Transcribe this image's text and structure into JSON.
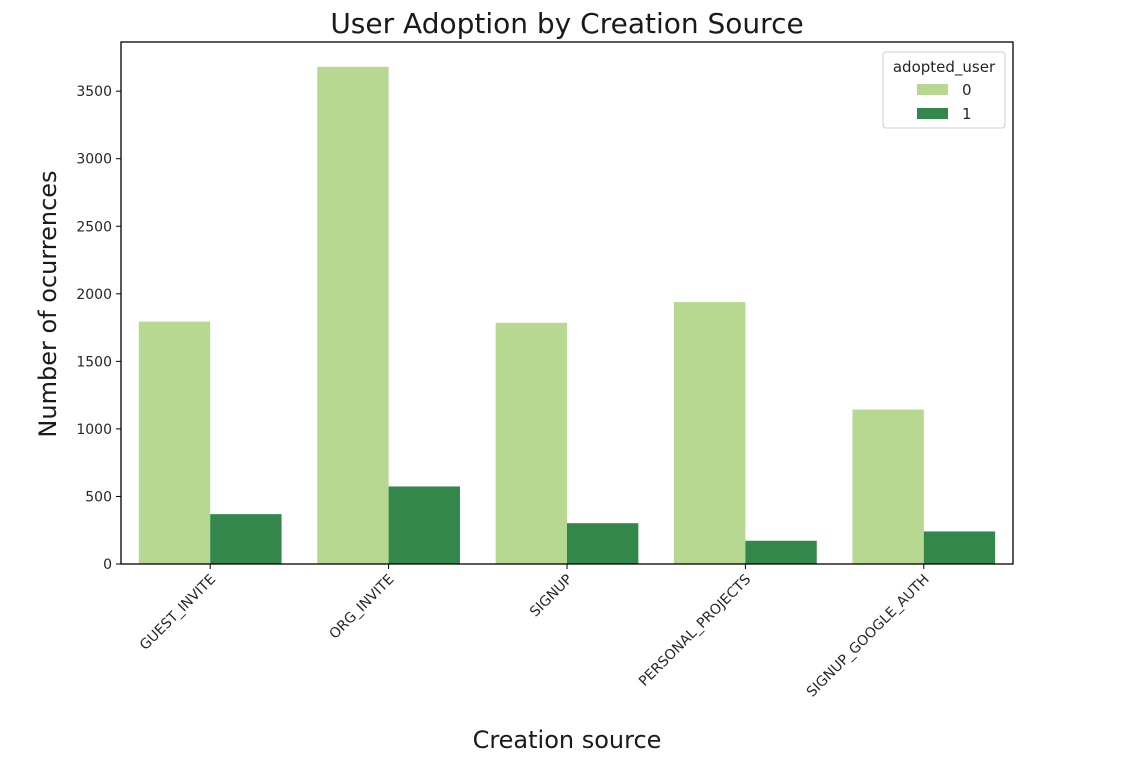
{
  "chart_data": {
    "type": "bar",
    "title": "User Adoption by Creation Source",
    "xlabel": "Creation source",
    "ylabel": "Number of ocurrences",
    "categories": [
      "GUEST_INVITE",
      "ORG_INVITE",
      "SIGNUP",
      "PERSONAL_PROJECTS",
      "SIGNUP_GOOGLE_AUTH"
    ],
    "series": [
      {
        "name": "0",
        "values": [
          1794,
          3680,
          1785,
          1939,
          1143
        ],
        "color": "#b6d890"
      },
      {
        "name": "1",
        "values": [
          369,
          574,
          302,
          172,
          241
        ],
        "color": "#33874b"
      }
    ],
    "yticks": [
      0,
      500,
      1000,
      1500,
      2000,
      2500,
      3000,
      3500
    ],
    "ylim": [
      0,
      3864
    ],
    "legend": {
      "title": "adopted_user",
      "position": "top-right"
    },
    "grid": false
  }
}
